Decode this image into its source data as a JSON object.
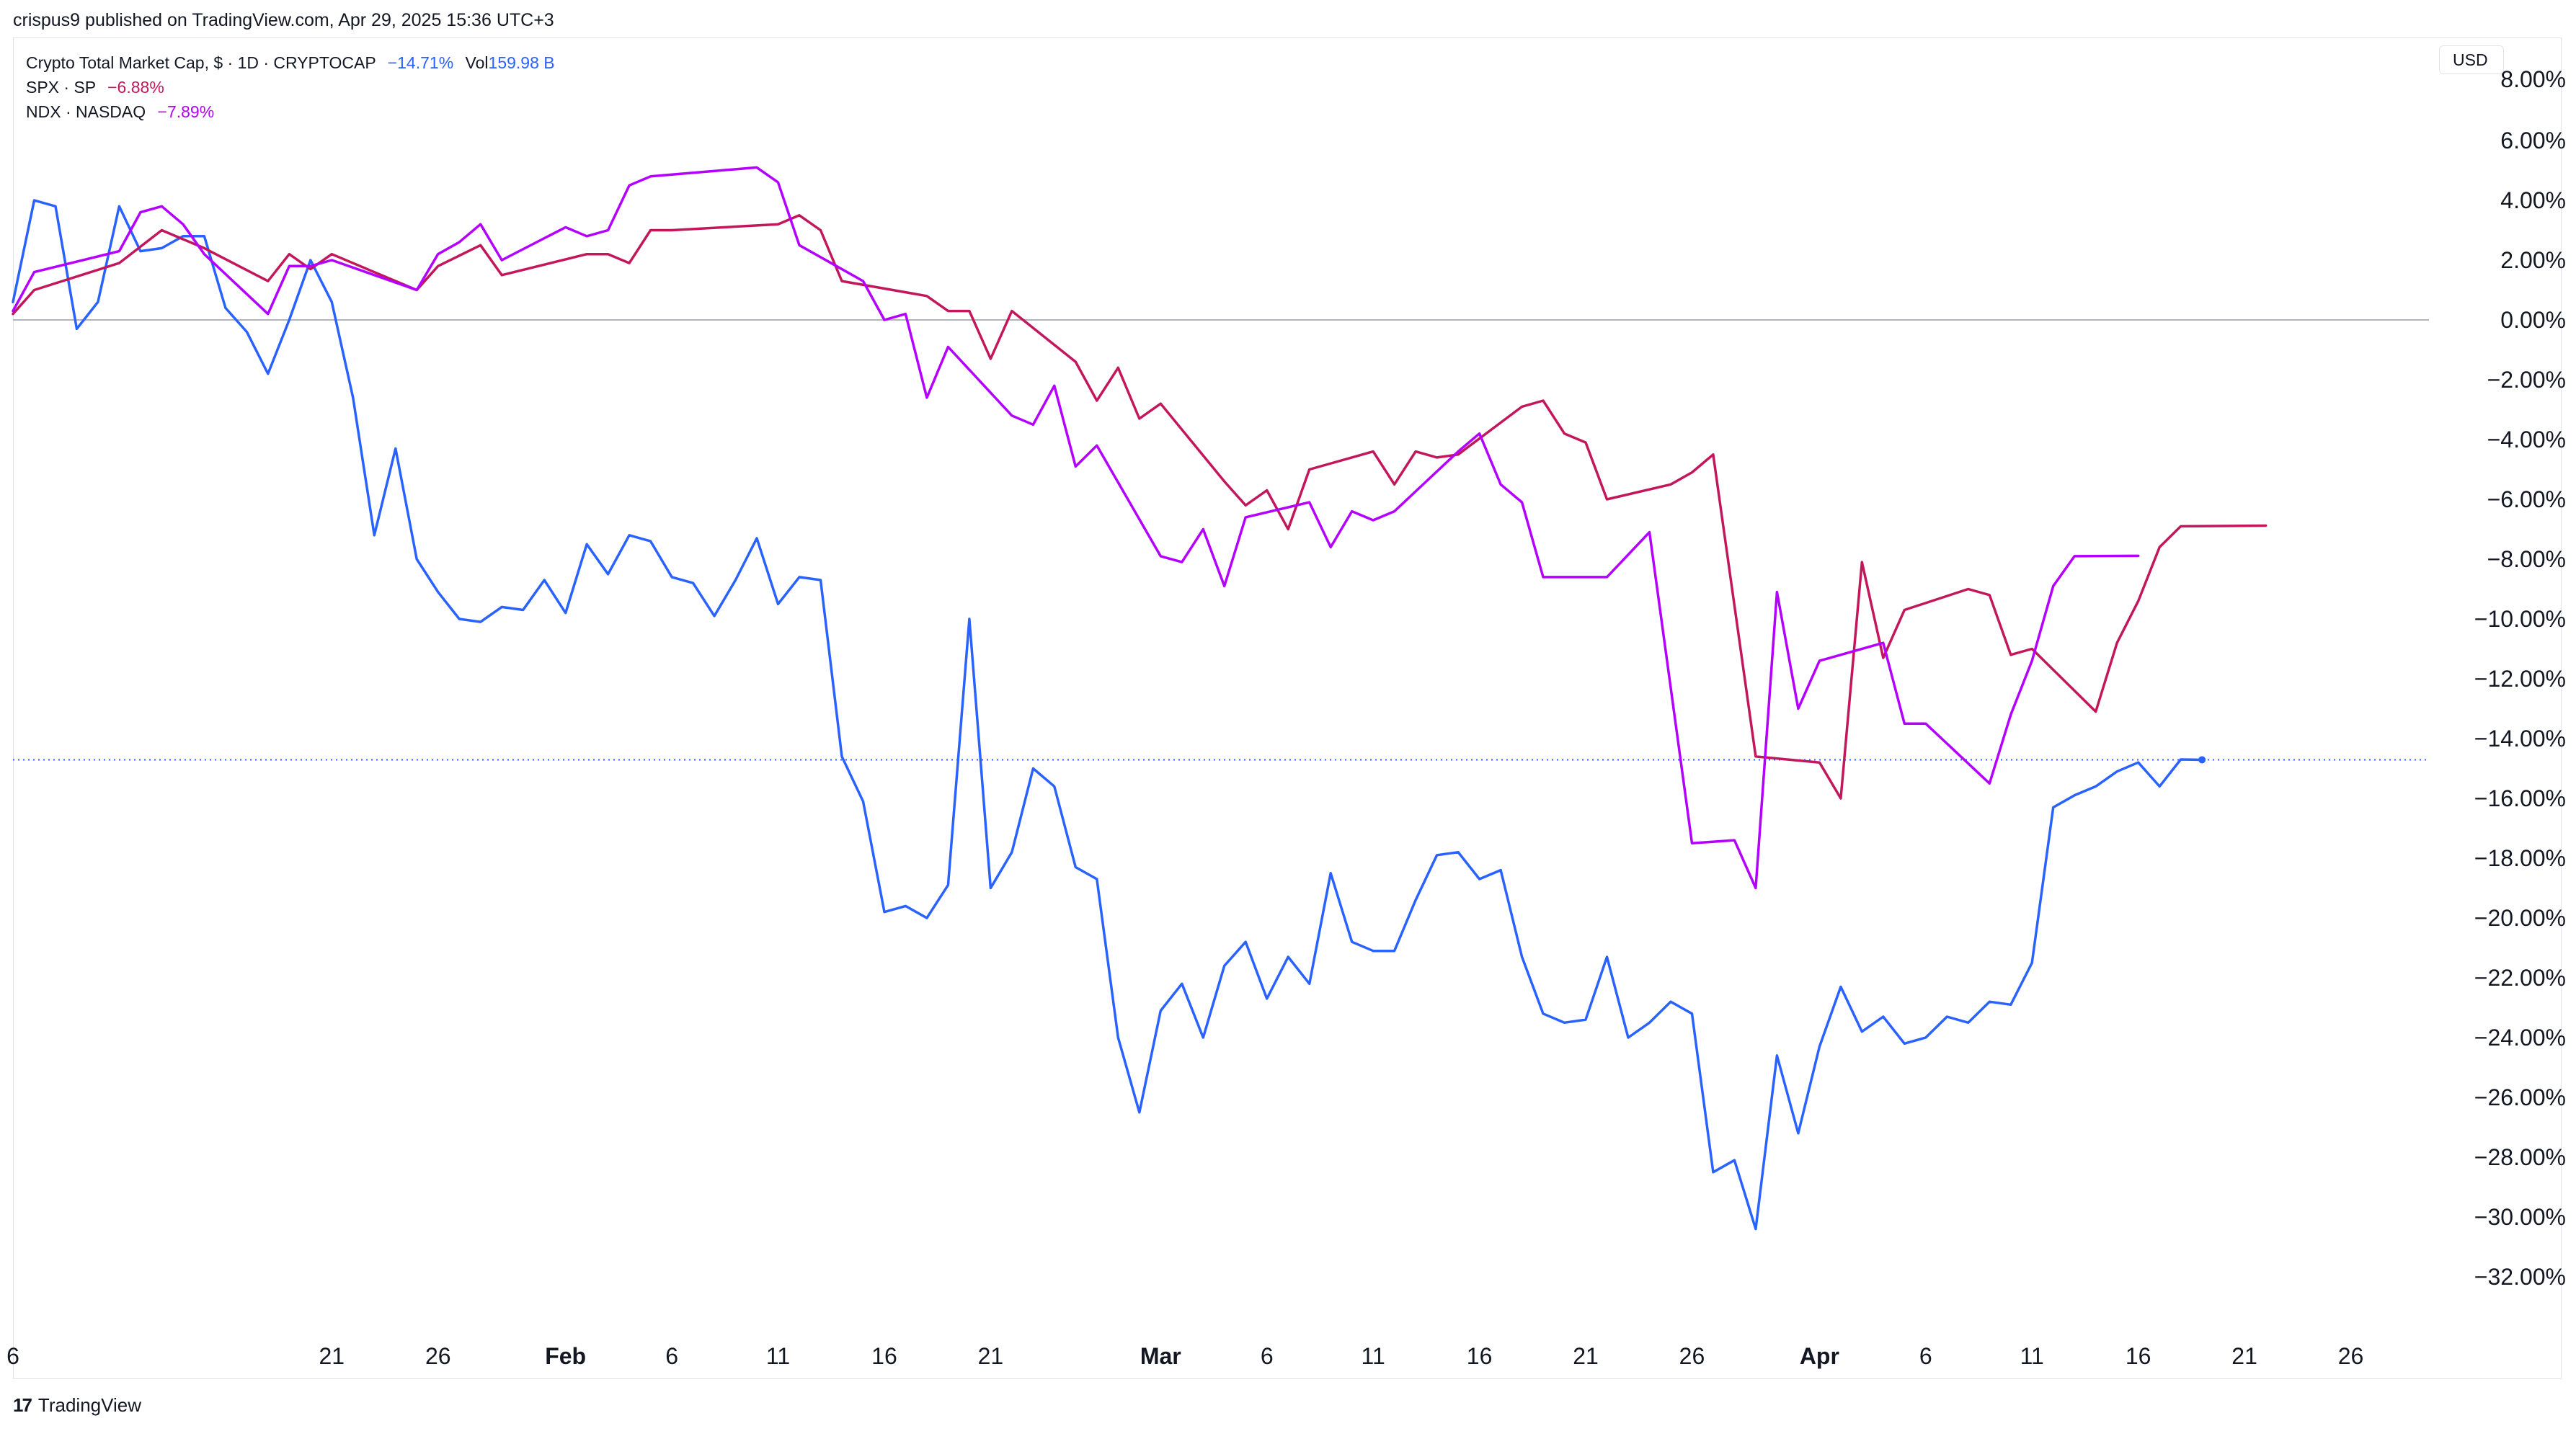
{
  "header": {
    "publisher_text": "crispus9 published on TradingView.com, Apr 29, 2025 15:36 UTC+3"
  },
  "legend": {
    "main": {
      "title": "Crypto Total Market Cap, $ · 1D · CRYPTOCAP",
      "change": "−14.71%",
      "vol_label": "Vol",
      "vol_value": "159.98 B"
    },
    "spx": {
      "title": "SPX · SP",
      "change": "−6.88%"
    },
    "ndx": {
      "title": "NDX · NASDAQ",
      "change": "−7.89%"
    }
  },
  "currency_label": "USD",
  "footer": {
    "logo": "17",
    "brand": "TradingView"
  },
  "colors": {
    "crypto": "#2962ff",
    "spx": "#c2185b",
    "ndx": "#b400ff",
    "grid_zero": "#b2b5be",
    "axis_text": "#131722"
  },
  "chart_data": {
    "type": "line",
    "y_axis_side": "right",
    "y_unit": "%",
    "ylim": [
      -36,
      8
    ],
    "y_ticks": [
      6,
      4,
      2,
      0,
      -2,
      -4,
      -6,
      -8,
      -10,
      -12,
      -14,
      -16,
      -18,
      -20,
      -22,
      -24,
      -26,
      -28,
      -30,
      -32
    ],
    "y_tick_labels": [
      "6.00%",
      "4.00%",
      "2.00%",
      "0.00%",
      "−2.00%",
      "−4.00%",
      "−6.00%",
      "−8.00%",
      "−10.00%",
      "−12.00%",
      "−14.00%",
      "−16.00%",
      "−18.00%",
      "−20.00%",
      "−22.00%",
      "−24.00%",
      "−26.00%",
      "−28.00%",
      "−30.00%",
      "−32.00%"
    ],
    "y_top_partial_label": "8.00%",
    "x_ticks": [
      {
        "day": 0,
        "label": "6",
        "bold": false
      },
      {
        "day": 15,
        "label": "21",
        "bold": false
      },
      {
        "day": 20,
        "label": "26",
        "bold": false
      },
      {
        "day": 26,
        "label": "Feb",
        "bold": true
      },
      {
        "day": 31,
        "label": "6",
        "bold": false
      },
      {
        "day": 36,
        "label": "11",
        "bold": false
      },
      {
        "day": 41,
        "label": "16",
        "bold": false
      },
      {
        "day": 46,
        "label": "21",
        "bold": false
      },
      {
        "day": 54,
        "label": "Mar",
        "bold": true
      },
      {
        "day": 59,
        "label": "6",
        "bold": false
      },
      {
        "day": 64,
        "label": "11",
        "bold": false
      },
      {
        "day": 69,
        "label": "16",
        "bold": false
      },
      {
        "day": 74,
        "label": "21",
        "bold": false
      },
      {
        "day": 79,
        "label": "26",
        "bold": false
      },
      {
        "day": 85,
        "label": "Apr",
        "bold": true
      },
      {
        "day": 90,
        "label": "6",
        "bold": false
      },
      {
        "day": 95,
        "label": "11",
        "bold": false
      },
      {
        "day": 100,
        "label": "16",
        "bold": false
      },
      {
        "day": 105,
        "label": "21",
        "bold": false
      },
      {
        "day": 110,
        "label": "26",
        "bold": false
      }
    ],
    "xlim": [
      0,
      113
    ],
    "last_value_line": -14.71,
    "series": [
      {
        "name": "Crypto Total Market Cap",
        "key": "crypto",
        "points": [
          [
            0,
            0.6
          ],
          [
            1,
            4.0
          ],
          [
            2,
            3.8
          ],
          [
            3,
            -0.3
          ],
          [
            4,
            0.6
          ],
          [
            5,
            3.8
          ],
          [
            6,
            2.3
          ],
          [
            7,
            2.4
          ],
          [
            8,
            2.8
          ],
          [
            9,
            2.8
          ],
          [
            10,
            0.4
          ],
          [
            11,
            -0.4
          ],
          [
            12,
            -1.8
          ],
          [
            13,
            0.0
          ],
          [
            14,
            2.0
          ],
          [
            15,
            0.6
          ],
          [
            16,
            -2.6
          ],
          [
            17,
            -7.2
          ],
          [
            18,
            -4.3
          ],
          [
            19,
            -8.0
          ],
          [
            20,
            -9.1
          ],
          [
            21,
            -10.0
          ],
          [
            22,
            -10.1
          ],
          [
            23,
            -9.6
          ],
          [
            24,
            -9.7
          ],
          [
            25,
            -8.7
          ],
          [
            26,
            -9.8
          ],
          [
            27,
            -7.5
          ],
          [
            28,
            -8.5
          ],
          [
            29,
            -7.2
          ],
          [
            30,
            -7.4
          ],
          [
            31,
            -8.6
          ],
          [
            32,
            -8.8
          ],
          [
            33,
            -9.9
          ],
          [
            34,
            -8.7
          ],
          [
            35,
            -7.3
          ],
          [
            36,
            -9.5
          ],
          [
            37,
            -8.6
          ],
          [
            38,
            -8.7
          ],
          [
            39,
            -14.6
          ],
          [
            40,
            -16.1
          ],
          [
            41,
            -19.8
          ],
          [
            42,
            -19.6
          ],
          [
            43,
            -20.0
          ],
          [
            44,
            -18.9
          ],
          [
            45,
            -10.0
          ],
          [
            46,
            -19.0
          ],
          [
            47,
            -17.8
          ],
          [
            48,
            -15.0
          ],
          [
            49,
            -15.6
          ],
          [
            50,
            -18.3
          ],
          [
            51,
            -18.7
          ],
          [
            52,
            -24.0
          ],
          [
            53,
            -26.5
          ],
          [
            54,
            -23.1
          ],
          [
            55,
            -22.2
          ],
          [
            56,
            -24.0
          ],
          [
            57,
            -21.6
          ],
          [
            58,
            -20.8
          ],
          [
            59,
            -22.7
          ],
          [
            60,
            -21.3
          ],
          [
            61,
            -22.2
          ],
          [
            62,
            -18.5
          ],
          [
            63,
            -20.8
          ],
          [
            64,
            -21.1
          ],
          [
            65,
            -21.1
          ],
          [
            66,
            -19.4
          ],
          [
            67,
            -17.9
          ],
          [
            68,
            -17.8
          ],
          [
            69,
            -18.7
          ],
          [
            70,
            -18.4
          ],
          [
            71,
            -21.3
          ],
          [
            72,
            -23.2
          ],
          [
            73,
            -23.5
          ],
          [
            74,
            -23.4
          ],
          [
            75,
            -21.3
          ],
          [
            76,
            -24.0
          ],
          [
            77,
            -23.5
          ],
          [
            78,
            -22.8
          ],
          [
            79,
            -23.2
          ],
          [
            80,
            -28.5
          ],
          [
            81,
            -28.1
          ],
          [
            82,
            -30.4
          ],
          [
            83,
            -24.6
          ],
          [
            84,
            -27.2
          ],
          [
            85,
            -24.3
          ],
          [
            86,
            -22.3
          ],
          [
            87,
            -23.8
          ],
          [
            88,
            -23.3
          ],
          [
            89,
            -24.2
          ],
          [
            90,
            -24.0
          ],
          [
            91,
            -23.3
          ],
          [
            92,
            -23.5
          ],
          [
            93,
            -22.8
          ],
          [
            94,
            -22.9
          ],
          [
            95,
            -21.5
          ],
          [
            96,
            -16.3
          ],
          [
            97,
            -15.9
          ],
          [
            98,
            -15.6
          ],
          [
            99,
            -15.1
          ],
          [
            100,
            -14.8
          ],
          [
            101,
            -15.6
          ],
          [
            102,
            -14.7
          ],
          [
            103,
            -14.71
          ]
        ]
      },
      {
        "name": "SPX",
        "key": "spx",
        "points": [
          [
            0,
            0.2
          ],
          [
            1,
            1.0
          ],
          [
            5,
            1.9
          ],
          [
            7,
            3.0
          ],
          [
            9,
            2.4
          ],
          [
            12,
            1.3
          ],
          [
            13,
            2.2
          ],
          [
            14,
            1.7
          ],
          [
            15,
            2.2
          ],
          [
            19,
            1.0
          ],
          [
            20,
            1.8
          ],
          [
            22,
            2.5
          ],
          [
            23,
            1.5
          ],
          [
            27,
            2.2
          ],
          [
            28,
            2.2
          ],
          [
            29,
            1.9
          ],
          [
            30,
            3.0
          ],
          [
            31,
            3.0
          ],
          [
            36,
            3.2
          ],
          [
            37,
            3.5
          ],
          [
            38,
            3.0
          ],
          [
            39,
            1.3
          ],
          [
            43,
            0.8
          ],
          [
            44,
            0.3
          ],
          [
            45,
            0.3
          ],
          [
            46,
            -1.3
          ],
          [
            47,
            0.3
          ],
          [
            50,
            -1.4
          ],
          [
            51,
            -2.7
          ],
          [
            52,
            -1.6
          ],
          [
            53,
            -3.3
          ],
          [
            54,
            -2.8
          ],
          [
            57,
            -5.4
          ],
          [
            58,
            -6.2
          ],
          [
            59,
            -5.7
          ],
          [
            60,
            -7.0
          ],
          [
            61,
            -5.0
          ],
          [
            64,
            -4.4
          ],
          [
            65,
            -5.5
          ],
          [
            66,
            -4.4
          ],
          [
            67,
            -4.6
          ],
          [
            68,
            -4.5
          ],
          [
            71,
            -2.9
          ],
          [
            72,
            -2.7
          ],
          [
            73,
            -3.8
          ],
          [
            74,
            -4.1
          ],
          [
            75,
            -6.0
          ],
          [
            78,
            -5.5
          ],
          [
            79,
            -5.1
          ],
          [
            80,
            -4.5
          ],
          [
            82,
            -14.6
          ],
          [
            85,
            -14.8
          ],
          [
            86,
            -16.0
          ],
          [
            87,
            -8.1
          ],
          [
            88,
            -11.3
          ],
          [
            89,
            -9.7
          ],
          [
            92,
            -9.0
          ],
          [
            93,
            -9.2
          ],
          [
            94,
            -11.2
          ],
          [
            95,
            -11.0
          ],
          [
            98,
            -13.1
          ],
          [
            99,
            -10.8
          ],
          [
            100,
            -9.4
          ],
          [
            101,
            -7.6
          ],
          [
            102,
            -6.9
          ],
          [
            106,
            -6.88
          ]
        ]
      },
      {
        "name": "NDX",
        "key": "ndx",
        "points": [
          [
            0,
            0.3
          ],
          [
            1,
            1.6
          ],
          [
            5,
            2.3
          ],
          [
            6,
            3.6
          ],
          [
            7,
            3.8
          ],
          [
            8,
            3.2
          ],
          [
            9,
            2.2
          ],
          [
            12,
            0.2
          ],
          [
            13,
            1.8
          ],
          [
            14,
            1.8
          ],
          [
            15,
            2.0
          ],
          [
            19,
            1.0
          ],
          [
            20,
            2.2
          ],
          [
            21,
            2.6
          ],
          [
            22,
            3.2
          ],
          [
            23,
            2.0
          ],
          [
            26,
            3.1
          ],
          [
            27,
            2.8
          ],
          [
            28,
            3.0
          ],
          [
            29,
            4.5
          ],
          [
            30,
            4.8
          ],
          [
            35,
            5.1
          ],
          [
            36,
            4.6
          ],
          [
            37,
            2.5
          ],
          [
            40,
            1.3
          ],
          [
            41,
            0.0
          ],
          [
            42,
            0.2
          ],
          [
            43,
            -2.6
          ],
          [
            44,
            -0.9
          ],
          [
            47,
            -3.2
          ],
          [
            48,
            -3.5
          ],
          [
            49,
            -2.2
          ],
          [
            50,
            -4.9
          ],
          [
            51,
            -4.2
          ],
          [
            54,
            -7.9
          ],
          [
            55,
            -8.1
          ],
          [
            56,
            -7.0
          ],
          [
            57,
            -8.9
          ],
          [
            58,
            -6.6
          ],
          [
            61,
            -6.1
          ],
          [
            62,
            -7.6
          ],
          [
            63,
            -6.4
          ],
          [
            64,
            -6.7
          ],
          [
            65,
            -6.4
          ],
          [
            68,
            -4.4
          ],
          [
            69,
            -3.8
          ],
          [
            70,
            -5.5
          ],
          [
            71,
            -6.1
          ],
          [
            72,
            -8.6
          ],
          [
            75,
            -8.6
          ],
          [
            77,
            -7.1
          ],
          [
            79,
            -17.5
          ],
          [
            81,
            -17.4
          ],
          [
            82,
            -19.0
          ],
          [
            83,
            -9.1
          ],
          [
            84,
            -13.0
          ],
          [
            85,
            -11.4
          ],
          [
            88,
            -10.8
          ],
          [
            89,
            -13.5
          ],
          [
            90,
            -13.5
          ],
          [
            93,
            -15.5
          ],
          [
            94,
            -13.2
          ],
          [
            95,
            -11.4
          ],
          [
            96,
            -8.9
          ],
          [
            97,
            -7.9
          ],
          [
            100,
            -7.89
          ]
        ]
      }
    ]
  }
}
